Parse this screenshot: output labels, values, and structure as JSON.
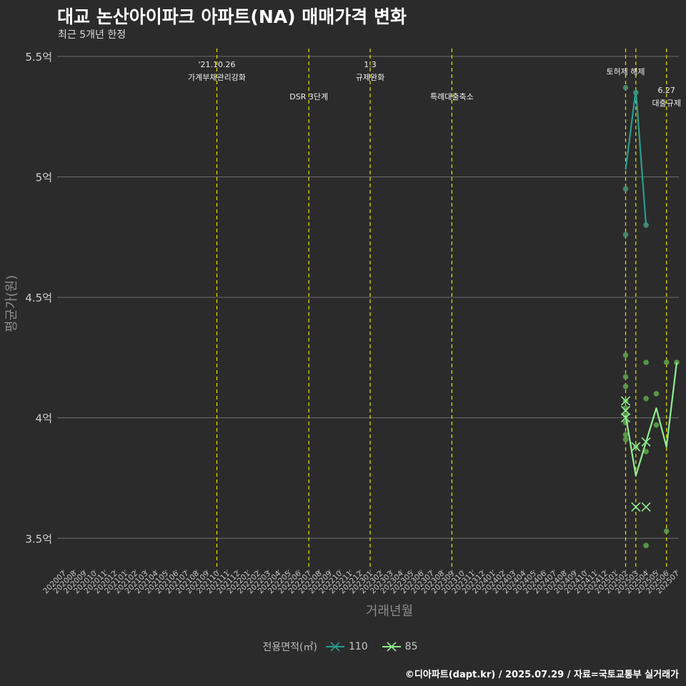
{
  "title": "대교 논산아이파크 아파트(NA) 매매가격 변화",
  "subtitle": "최근 5개년 한정",
  "caption": "©디아파트(dapt.kr) / 2025.07.29 / 자료=국토교통부 실거래가",
  "legend": {
    "title": "전용면적(㎡)",
    "items": [
      "110",
      "85"
    ]
  },
  "colors": {
    "s110": "#2a9d8f",
    "s85": "#90ee90",
    "events": "#e6e600",
    "grid": "#6e6e6e",
    "bg": "#2b2b2b"
  },
  "chart_data": {
    "type": "line",
    "title": "대교 논산아이파크 아파트(NA) 매매가격 변화",
    "xlabel": "거래년월",
    "ylabel": "평균가(원)",
    "categories": [
      "202007",
      "202008",
      "202009",
      "202010",
      "202011",
      "202012",
      "202101",
      "202102",
      "202103",
      "202104",
      "202105",
      "202106",
      "202107",
      "202108",
      "202109",
      "202110",
      "202111",
      "202112",
      "202201",
      "202202",
      "202203",
      "202204",
      "202205",
      "202206",
      "202207",
      "202208",
      "202209",
      "202210",
      "202211",
      "202212",
      "202301",
      "202302",
      "202303",
      "202304",
      "202305",
      "202306",
      "202307",
      "202308",
      "202309",
      "202310",
      "202311",
      "202312",
      "202401",
      "202402",
      "202403",
      "202404",
      "202405",
      "202406",
      "202407",
      "202408",
      "202409",
      "202410",
      "202411",
      "202412",
      "202501",
      "202502",
      "202503",
      "202504",
      "202505",
      "202506",
      "202507"
    ],
    "ylim": [
      3.4,
      5.55
    ],
    "yticks": [
      3.5,
      4,
      4.5,
      5,
      5.5
    ],
    "ytick_labels": [
      "3.5억",
      "4억",
      "4.5억",
      "5억",
      "5.5억"
    ],
    "events": [
      {
        "x": "202110",
        "label": "'21.10.26\n가계부채관리강화",
        "level": 1
      },
      {
        "x": "202207",
        "label": "DSR 3단계",
        "level": 2
      },
      {
        "x": "202301",
        "label": "1.3\n규제완화",
        "level": 1
      },
      {
        "x": "202309",
        "label": "특례대출축소",
        "level": 2
      },
      {
        "x": "202502",
        "label": "토허제 해제",
        "level": 3
      },
      {
        "x": "202503",
        "label": "",
        "level": 0
      },
      {
        "x": "202506",
        "label": "6.27\n대출규제",
        "level": 4
      }
    ],
    "series": [
      {
        "name": "110",
        "line": [
          [
            "202502",
            5.03
          ],
          [
            "202503",
            5.36
          ],
          [
            "202504",
            4.8
          ]
        ],
        "points": [
          [
            "202502",
            5.37
          ],
          [
            "202502",
            4.95
          ],
          [
            "202502",
            4.76
          ],
          [
            "202503",
            5.35
          ],
          [
            "202504",
            4.8
          ]
        ],
        "crosses": []
      },
      {
        "name": "85",
        "line": [
          [
            "202502",
            4.01
          ],
          [
            "202503",
            3.76
          ],
          [
            "202504",
            3.9
          ],
          [
            "202505",
            4.04
          ],
          [
            "202506",
            3.88
          ],
          [
            "202507",
            4.23
          ]
        ],
        "points": [
          [
            "202502",
            4.26
          ],
          [
            "202502",
            4.17
          ],
          [
            "202502",
            4.13
          ],
          [
            "202502",
            4.07
          ],
          [
            "202502",
            4.04
          ],
          [
            "202502",
            4.01
          ],
          [
            "202502",
            3.98
          ],
          [
            "202502",
            3.93
          ],
          [
            "202502",
            3.91
          ],
          [
            "202503",
            3.88
          ],
          [
            "202504",
            4.23
          ],
          [
            "202504",
            4.08
          ],
          [
            "202504",
            3.86
          ],
          [
            "202504",
            3.47
          ],
          [
            "202505",
            4.1
          ],
          [
            "202505",
            3.97
          ],
          [
            "202506",
            4.23
          ],
          [
            "202506",
            3.53
          ],
          [
            "202507",
            4.23
          ]
        ],
        "crosses": [
          [
            "202502",
            4.07
          ],
          [
            "202502",
            4.0
          ],
          [
            "202502",
            4.03
          ],
          [
            "202503",
            3.88
          ],
          [
            "202503",
            3.63
          ],
          [
            "202504",
            3.9
          ],
          [
            "202504",
            3.63
          ]
        ]
      }
    ]
  }
}
